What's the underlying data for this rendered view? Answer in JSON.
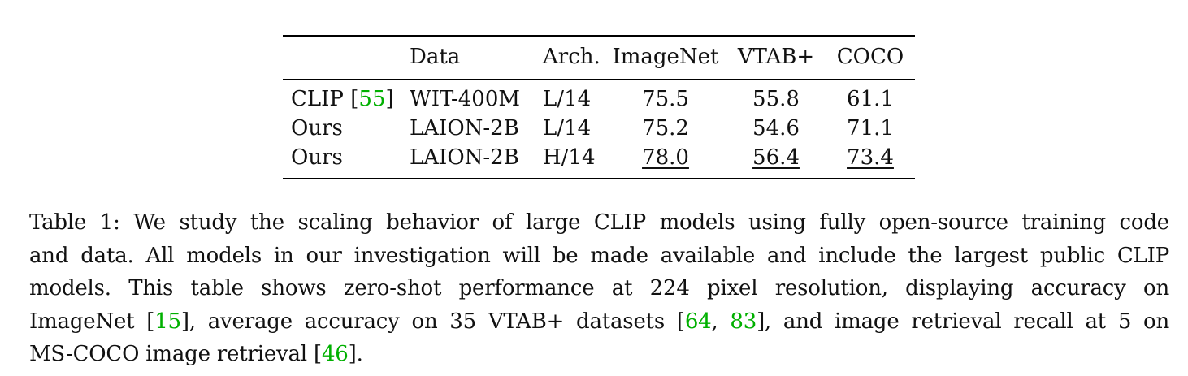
{
  "table": {
    "headers": [
      "",
      "Data",
      "Arch.",
      "ImageNet",
      "VTAB+",
      "COCO"
    ],
    "rows": [
      {
        "name": "CLIP",
        "cite": "55",
        "data": "WIT-400M",
        "arch": "L/14",
        "imagenet": "75.5",
        "vtab": "55.8",
        "coco": "61.1"
      },
      {
        "name": "Ours",
        "data": "LAION-2B",
        "arch": "L/14",
        "imagenet": "75.2",
        "vtab": "54.6",
        "coco": "71.1"
      },
      {
        "name": "Ours",
        "data": "LAION-2B",
        "arch": "H/14",
        "imagenet": "78.0",
        "vtab": "56.4",
        "coco": "73.4"
      }
    ]
  },
  "caption": {
    "l1": "Table 1: We study the scaling behavior of large CLIP models using fully open-source training code",
    "l2": "and data. All models in our investigation will be made available and include the largest public CLIP",
    "l3": "models. This table shows zero-shot performance at 224 pixel resolution, displaying accuracy on",
    "l4a": "ImageNet [",
    "cite_imagenet": "15",
    "l4b": "], average accuracy on 35 VTAB+ datasets [",
    "cite_vtab1": "64",
    "l4c": ", ",
    "cite_vtab2": "83",
    "l4d": "], and image retrieval recall at 5 on",
    "l5a": "MS-COCO image retrieval [",
    "cite_coco": "46",
    "l5b": "]."
  },
  "colors": {
    "citation": "#00b000",
    "text": "#111111"
  }
}
